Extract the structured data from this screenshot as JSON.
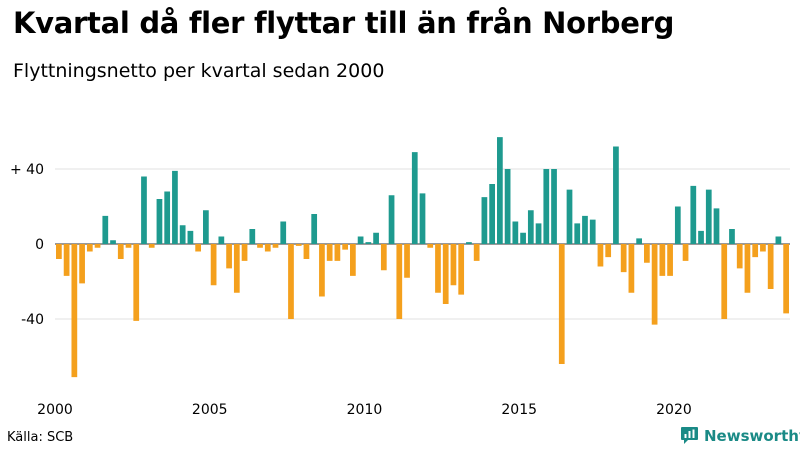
{
  "title": "Kvartal då fler flyttar till än från Norberg",
  "subtitle": "Flyttningsnetto per kvartal sedan 2000",
  "source": "Källa: SCB",
  "brand": "Newsworthy",
  "colors": {
    "positive": "#1e9a8f",
    "negative": "#f4a01d",
    "brand": "#1a8a86"
  },
  "chart_data": {
    "type": "bar",
    "ylim": [
      -70,
      57
    ],
    "yticks": [
      {
        "value": 40,
        "label": "+ 40"
      },
      {
        "value": 0,
        "label": "0"
      },
      {
        "value": -40,
        "label": "-40"
      }
    ],
    "xticks": [
      {
        "value": 2000,
        "label": "2000"
      },
      {
        "value": 2005,
        "label": "2005"
      },
      {
        "value": 2010,
        "label": "2010"
      },
      {
        "value": 2015,
        "label": "2015"
      },
      {
        "value": 2020,
        "label": "2020"
      }
    ],
    "first_year": 2000,
    "values": [
      -8,
      -17,
      -71,
      -21,
      -4,
      -2,
      15,
      2,
      -8,
      -2,
      -41,
      36,
      -2,
      24,
      28,
      39,
      10,
      7,
      -4,
      18,
      -22,
      4,
      -13,
      -26,
      -9,
      8,
      -2,
      -4,
      -2,
      12,
      -40,
      -1,
      -8,
      16,
      -28,
      -9,
      -9,
      -3,
      -17,
      4,
      1,
      6,
      -14,
      26,
      -40,
      -18,
      49,
      27,
      -2,
      -26,
      -32,
      -22,
      -27,
      1,
      -9,
      25,
      32,
      57,
      40,
      12,
      6,
      18,
      11,
      40,
      40,
      -64,
      29,
      11,
      15,
      13,
      -12,
      -7,
      52,
      -15,
      -26,
      3,
      -10,
      -43,
      -17,
      -17,
      20,
      -9,
      31,
      7,
      29,
      19,
      -40,
      8,
      -13,
      -26,
      -7,
      -4,
      -24,
      4,
      -37
    ]
  }
}
